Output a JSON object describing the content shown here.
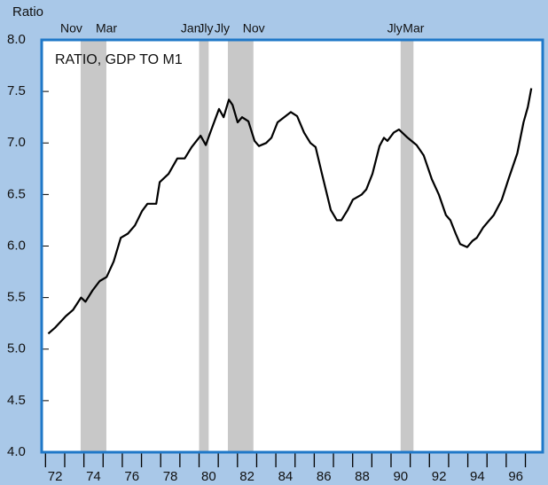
{
  "chart_data": {
    "type": "line",
    "title": "RATIO, GDP TO M1",
    "y_label": "Ratio",
    "color": "#000000",
    "x": [
      1972.14,
      1972.51,
      1973.06,
      1973.43,
      1973.85,
      1974.08,
      1974.45,
      1974.82,
      1975.18,
      1975.55,
      1975.92,
      1976.29,
      1976.66,
      1977.03,
      1977.31,
      1977.77,
      1977.95,
      1978.41,
      1978.87,
      1979.25,
      1979.61,
      1980.08,
      1980.35,
      1980.58,
      1981.04,
      1981.28,
      1981.55,
      1981.74,
      1982.01,
      1982.24,
      1982.57,
      1982.89,
      1983.12,
      1983.49,
      1983.77,
      1984.09,
      1984.78,
      1985.11,
      1985.47,
      1985.8,
      1986.07,
      1986.4,
      1986.86,
      1987.18,
      1987.41,
      1987.74,
      1988.01,
      1988.47,
      1988.71,
      1989.03,
      1989.4,
      1989.63,
      1989.81,
      1990.14,
      1990.41,
      1990.87,
      1991.33,
      1991.7,
      1992.12,
      1992.49,
      1992.86,
      1993.09,
      1993.37,
      1993.6,
      1993.97,
      1994.24,
      1994.47,
      1994.8,
      1995.12,
      1995.35,
      1995.77,
      1996.12,
      1996.58,
      1996.9,
      1997.13,
      1997.31
    ],
    "values": [
      5.15,
      5.21,
      5.32,
      5.38,
      5.5,
      5.46,
      5.57,
      5.66,
      5.7,
      5.85,
      6.08,
      6.12,
      6.2,
      6.34,
      6.41,
      6.41,
      6.62,
      6.7,
      6.85,
      6.85,
      6.96,
      7.07,
      6.98,
      7.1,
      7.33,
      7.25,
      7.42,
      7.37,
      7.2,
      7.25,
      7.21,
      7.02,
      6.97,
      7.0,
      7.05,
      7.2,
      7.3,
      7.26,
      7.1,
      7.0,
      6.96,
      6.7,
      6.35,
      6.25,
      6.25,
      6.35,
      6.45,
      6.5,
      6.55,
      6.7,
      6.97,
      7.05,
      7.02,
      7.1,
      7.13,
      7.05,
      6.98,
      6.88,
      6.65,
      6.5,
      6.3,
      6.25,
      6.12,
      6.02,
      5.99,
      6.05,
      6.08,
      6.18,
      6.25,
      6.3,
      6.45,
      6.65,
      6.9,
      7.2,
      7.35,
      7.53
    ],
    "xlim": [
      1971.8,
      1997.9
    ],
    "ylim": [
      4,
      8
    ],
    "xticks": [
      {
        "value": 1972.5,
        "label": "72"
      },
      {
        "value": 1974.5,
        "label": "74"
      },
      {
        "value": 1976.5,
        "label": "76"
      },
      {
        "value": 1978.5,
        "label": "78"
      },
      {
        "value": 1980.5,
        "label": "80"
      },
      {
        "value": 1982.5,
        "label": "82"
      },
      {
        "value": 1984.5,
        "label": "84"
      },
      {
        "value": 1986.5,
        "label": "86"
      },
      {
        "value": 1988.5,
        "label": "88"
      },
      {
        "value": 1990.5,
        "label": "90"
      },
      {
        "value": 1992.5,
        "label": "92"
      },
      {
        "value": 1994.5,
        "label": "94"
      },
      {
        "value": 1996.5,
        "label": "96"
      }
    ],
    "xminor_ticks": [
      1972,
      1973,
      1974,
      1975,
      1976,
      1977,
      1978,
      1979,
      1980,
      1981,
      1982,
      1983,
      1984,
      1985,
      1986,
      1987,
      1988,
      1989,
      1990,
      1991,
      1992,
      1993,
      1994,
      1995,
      1996,
      1997
    ],
    "yticks": [
      {
        "value": 4,
        "label": "4.0"
      },
      4.5,
      {
        "value": 5,
        "label": "5.0"
      },
      5.5,
      {
        "value": 6,
        "label": "6.0"
      },
      6.5,
      {
        "value": 7,
        "label": "7.0"
      },
      7.5,
      {
        "value": 8,
        "label": "8.0"
      }
    ],
    "recessions": [
      {
        "start": 1973.83,
        "end": 1975.17,
        "start_label": "Nov",
        "end_label": "Mar"
      },
      {
        "start": 1980.0,
        "end": 1980.5,
        "start_label": "Jan",
        "end_label": "Jly"
      },
      {
        "start": 1981.5,
        "end": 1982.83,
        "start_label": "Jly",
        "end_label": "Nov"
      },
      {
        "start": 1990.5,
        "end": 1991.17,
        "start_label": "Jly",
        "end_label": "Mar"
      }
    ],
    "recession_color": "#c8c8c8",
    "frame_color": "#1f78c8"
  }
}
